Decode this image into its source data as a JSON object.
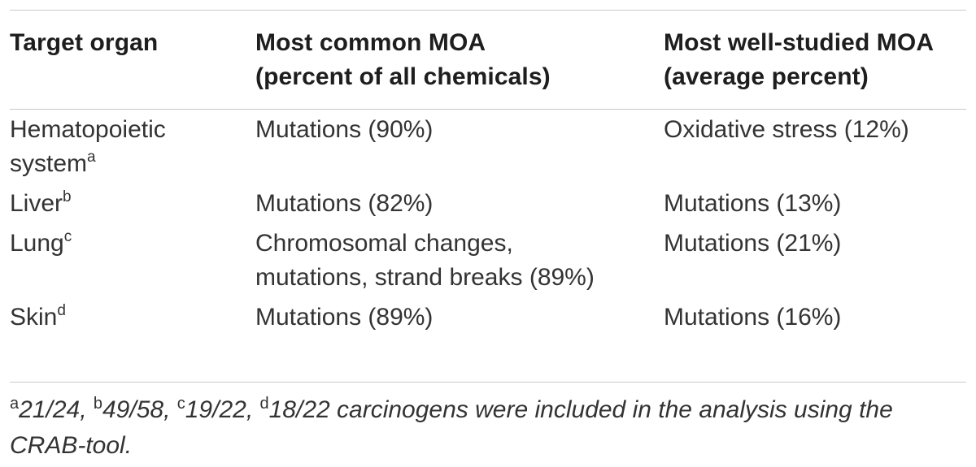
{
  "table": {
    "headers": [
      {
        "line1": "Target organ",
        "line2": ""
      },
      {
        "line1": "Most common MOA",
        "line2": "(percent of all chemicals)"
      },
      {
        "line1": "Most well-studied MOA",
        "line2": "(average percent)"
      }
    ],
    "rows": [
      {
        "organ_line1": "Hematopoietic",
        "organ_line2": "system",
        "organ_sup": "a",
        "common_line1": "Mutations (90%)",
        "common_line2": "",
        "studied": "Oxidative stress (12%)"
      },
      {
        "organ_line1": "Liver",
        "organ_sup": "b",
        "common_line1": "Mutations (82%)",
        "common_line2": "",
        "studied": "Mutations (13%)"
      },
      {
        "organ_line1": "Lung",
        "organ_sup": "c",
        "common_line1": "Chromosomal changes,",
        "common_line2": "mutations, strand breaks (89%)",
        "studied": "Mutations (21%)"
      },
      {
        "organ_line1": "Skin",
        "organ_sup": "d",
        "common_line1": "Mutations (89%)",
        "common_line2": "",
        "studied": "Mutations (16%)"
      }
    ]
  },
  "footnote": {
    "sup_a": "a",
    "part_a": "21/24, ",
    "sup_b": "b",
    "part_b": "49/58, ",
    "sup_c": "c",
    "part_c": "19/22, ",
    "sup_d": "d",
    "part_d": "18/22 carcinogens were included in the analysis using the CRAB-tool."
  }
}
